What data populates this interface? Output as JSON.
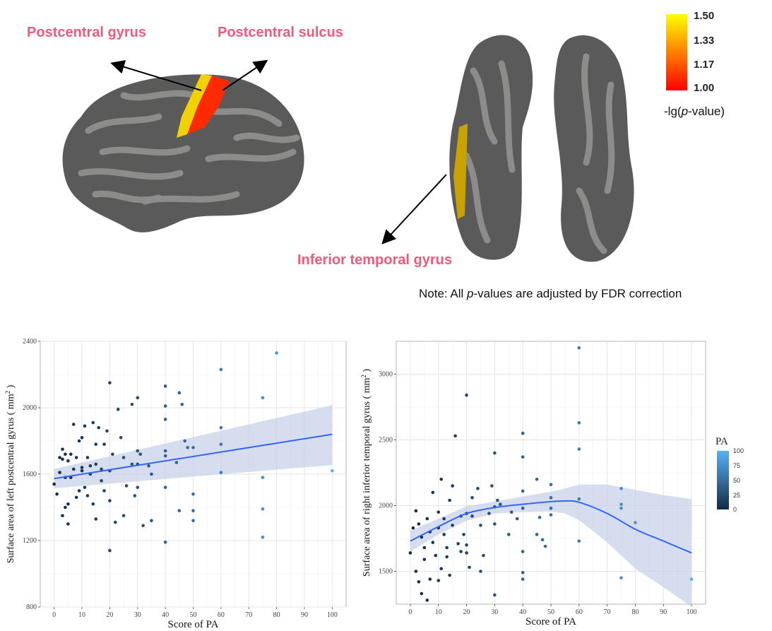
{
  "brain_labels": {
    "postcentral_gyrus": "Postcentral gyrus",
    "postcentral_sulcus": "Postcentral sulcus",
    "inferior_temporal_gyrus": "Inferior temporal gyrus"
  },
  "colorbar": {
    "ticks": [
      "1.50",
      "1.33",
      "1.17",
      "1.00"
    ],
    "label_prefix": "-lg(",
    "label_p": "p",
    "label_suffix": "-value)",
    "colors": [
      "#ffff00",
      "#ff0000"
    ]
  },
  "note": {
    "prefix": "Note: All ",
    "p": "p",
    "suffix": "-values are adjusted by FDR correction"
  },
  "legend": {
    "title": "PA",
    "ticks": [
      "100",
      "75",
      "50",
      "25",
      "0"
    ],
    "colors": [
      "#56b1f7",
      "#132b43"
    ]
  },
  "chart_data": [
    {
      "type": "scatter",
      "xlabel": "Score of PA",
      "ylabel": "Surface area of left postcentral gyrus ( mm",
      "ylabel_sup": "2",
      "ylabel_end": " )",
      "xlim": [
        -5,
        105
      ],
      "ylim": [
        800,
        2400
      ],
      "xticks": [
        0,
        10,
        20,
        30,
        40,
        50,
        60,
        70,
        80,
        90,
        100
      ],
      "yticks": [
        800,
        1200,
        1600,
        2000,
        2400
      ],
      "x": [
        0,
        1,
        2,
        2,
        3,
        3,
        3,
        4,
        4,
        4,
        5,
        5,
        5,
        6,
        6,
        7,
        7,
        8,
        8,
        9,
        9,
        10,
        10,
        10,
        11,
        11,
        12,
        12,
        13,
        13,
        14,
        14,
        15,
        15,
        15,
        16,
        17,
        17,
        18,
        18,
        19,
        20,
        20,
        20,
        20,
        21,
        22,
        23,
        24,
        25,
        25,
        26,
        28,
        28,
        29,
        30,
        30,
        30,
        30,
        31,
        32,
        34,
        35,
        35,
        40,
        40,
        40,
        40,
        40,
        40,
        40,
        44,
        45,
        45,
        46,
        47,
        48,
        50,
        50,
        50,
        50,
        60,
        60,
        60,
        60,
        75,
        75,
        75,
        75,
        80,
        100
      ],
      "y": [
        1540,
        1480,
        1700,
        1610,
        1690,
        1350,
        1750,
        1580,
        1720,
        1400,
        1680,
        1420,
        1300,
        1580,
        1720,
        1630,
        1900,
        1700,
        1460,
        1800,
        1500,
        1620,
        1640,
        1820,
        1890,
        1520,
        1700,
        1470,
        1650,
        1600,
        1420,
        1910,
        1660,
        1780,
        1330,
        1880,
        1560,
        1630,
        1780,
        1500,
        1860,
        1440,
        1620,
        1140,
        2150,
        1720,
        1310,
        1990,
        1820,
        1700,
        1350,
        1530,
        2020,
        1660,
        1470,
        1520,
        1660,
        1740,
        2060,
        1720,
        1290,
        1650,
        1320,
        1600,
        1520,
        1190,
        1710,
        1740,
        1930,
        2010,
        2130,
        1670,
        2090,
        1380,
        2020,
        1800,
        1760,
        1480,
        1320,
        1380,
        1760,
        1610,
        1780,
        1880,
        2230,
        1580,
        1390,
        1220,
        2060,
        2330,
        1620
      ],
      "fit": {
        "x": [
          0,
          100
        ],
        "y": [
          1573,
          1840
        ],
        "lower": [
          1515,
          1655
        ],
        "upper": [
          1631,
          2015
        ]
      }
    },
    {
      "type": "scatter",
      "xlabel": "Score of PA",
      "ylabel": "Surface area of right inferior temporal gyrus ( mm",
      "ylabel_sup": "2",
      "ylabel_end": " )",
      "xlim": [
        -5,
        105
      ],
      "ylim": [
        1250,
        3250
      ],
      "xticks": [
        0,
        10,
        20,
        30,
        40,
        50,
        60,
        70,
        80,
        90,
        100
      ],
      "yticks": [
        1500,
        2000,
        2500,
        3000
      ],
      "x": [
        0,
        1,
        2,
        2,
        3,
        3,
        4,
        4,
        5,
        5,
        6,
        6,
        7,
        7,
        8,
        8,
        9,
        10,
        10,
        10,
        11,
        11,
        12,
        12,
        13,
        13,
        14,
        14,
        15,
        15,
        16,
        17,
        18,
        18,
        19,
        20,
        20,
        20,
        20,
        21,
        22,
        22,
        24,
        25,
        25,
        26,
        28,
        29,
        30,
        30,
        30,
        30,
        31,
        32,
        35,
        36,
        38,
        40,
        40,
        40,
        40,
        40,
        40,
        40,
        45,
        45,
        46,
        47,
        48,
        50,
        50,
        50,
        50,
        60,
        60,
        60,
        60,
        60,
        75,
        75,
        75,
        75,
        80,
        100
      ],
      "y": [
        1640,
        1830,
        1500,
        1960,
        1420,
        1860,
        1760,
        1330,
        1680,
        1590,
        1280,
        1900,
        1800,
        1440,
        2100,
        1720,
        1620,
        1830,
        1950,
        1430,
        1520,
        2200,
        1780,
        1900,
        1610,
        1680,
        2040,
        1470,
        2150,
        1850,
        2530,
        1710,
        1920,
        1650,
        1780,
        2840,
        1940,
        1640,
        1700,
        1530,
        2060,
        1920,
        2130,
        1850,
        1500,
        1620,
        1940,
        2150,
        1320,
        1860,
        1990,
        2400,
        2040,
        2010,
        1780,
        1950,
        1900,
        1490,
        1650,
        1980,
        2110,
        2370,
        2550,
        1440,
        1780,
        2200,
        1910,
        1740,
        1690,
        1930,
        2060,
        1980,
        2160,
        1730,
        2050,
        2430,
        2630,
        3200,
        1450,
        1980,
        2010,
        2130,
        1870,
        1440
      ],
      "fit": {
        "x": [
          0,
          10,
          20,
          30,
          40,
          50,
          55,
          60,
          70,
          80,
          90,
          100
        ],
        "y": [
          1730,
          1840,
          1940,
          1985,
          2010,
          2030,
          2035,
          2025,
          1940,
          1820,
          1730,
          1640
        ],
        "lower": [
          1650,
          1780,
          1885,
          1940,
          1950,
          1955,
          1940,
          1890,
          1720,
          1520,
          1380,
          1230
        ],
        "upper": [
          1810,
          1900,
          1995,
          2030,
          2070,
          2105,
          2130,
          2160,
          2160,
          2120,
          2080,
          2050
        ]
      }
    }
  ]
}
